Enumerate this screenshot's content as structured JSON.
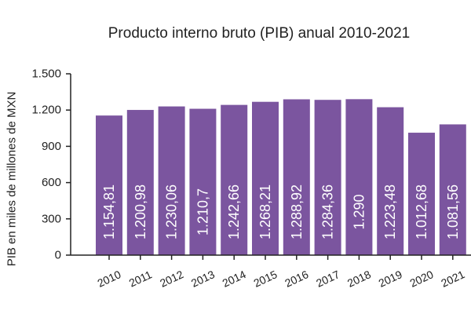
{
  "chart_data": {
    "type": "bar",
    "title": "Producto interno bruto (PIB) anual 2010-2021",
    "xlabel": "",
    "ylabel": "PIB en miles de millones de MXN",
    "categories": [
      "2010",
      "2011",
      "2012",
      "2013",
      "2014",
      "2015",
      "2016",
      "2017",
      "2018",
      "2019",
      "2020",
      "2021"
    ],
    "values": [
      1154.81,
      1200.98,
      1230.06,
      1210.7,
      1242.66,
      1268.21,
      1288.92,
      1284.36,
      1290,
      1223.48,
      1012.68,
      1081.56
    ],
    "data_labels": [
      "1.154,81",
      "1.200,98",
      "1.230,06",
      "1.210,7",
      "1.242,66",
      "1.268,21",
      "1.288,92",
      "1.284,36",
      "1.290",
      "1.223,48",
      "1.012,68",
      "1.081,56"
    ],
    "yticks": [
      0,
      300,
      600,
      900,
      1200,
      1500
    ],
    "ytick_labels": [
      "0",
      "300",
      "600",
      "900",
      "1.200",
      "1.500"
    ],
    "ylim": [
      0,
      1500
    ],
    "grid": false,
    "bar_color": "#7b559f",
    "axis_color": "#222222",
    "label_color": "#ffffff"
  }
}
